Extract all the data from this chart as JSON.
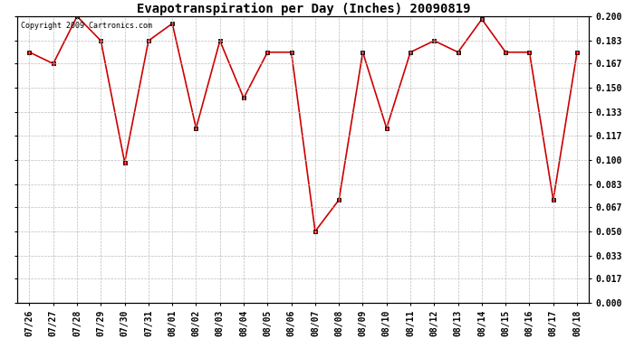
{
  "title": "Evapotranspiration per Day (Inches) 20090819",
  "copyright_text": "Copyright 2009 Cartronics.com",
  "dates": [
    "07/26",
    "07/27",
    "07/28",
    "07/29",
    "07/30",
    "07/31",
    "08/01",
    "08/02",
    "08/03",
    "08/04",
    "08/05",
    "08/06",
    "08/07",
    "08/08",
    "08/09",
    "08/10",
    "08/11",
    "08/12",
    "08/13",
    "08/14",
    "08/15",
    "08/16",
    "08/17",
    "08/18"
  ],
  "values": [
    0.175,
    0.167,
    0.2,
    0.183,
    0.098,
    0.183,
    0.195,
    0.122,
    0.183,
    0.143,
    0.175,
    0.175,
    0.05,
    0.072,
    0.175,
    0.122,
    0.175,
    0.183,
    0.175,
    0.198,
    0.175,
    0.175,
    0.072,
    0.175
  ],
  "line_color": "#cc0000",
  "marker": "s",
  "marker_size": 3,
  "background_color": "#ffffff",
  "grid_color": "#bbbbbb",
  "ylim": [
    0.0,
    0.2
  ],
  "yticks": [
    0.0,
    0.017,
    0.033,
    0.05,
    0.067,
    0.083,
    0.1,
    0.117,
    0.133,
    0.15,
    0.167,
    0.183,
    0.2
  ],
  "title_fontsize": 10,
  "copyright_fontsize": 6,
  "tick_fontsize": 7,
  "figwidth": 6.9,
  "figheight": 3.75,
  "dpi": 100
}
